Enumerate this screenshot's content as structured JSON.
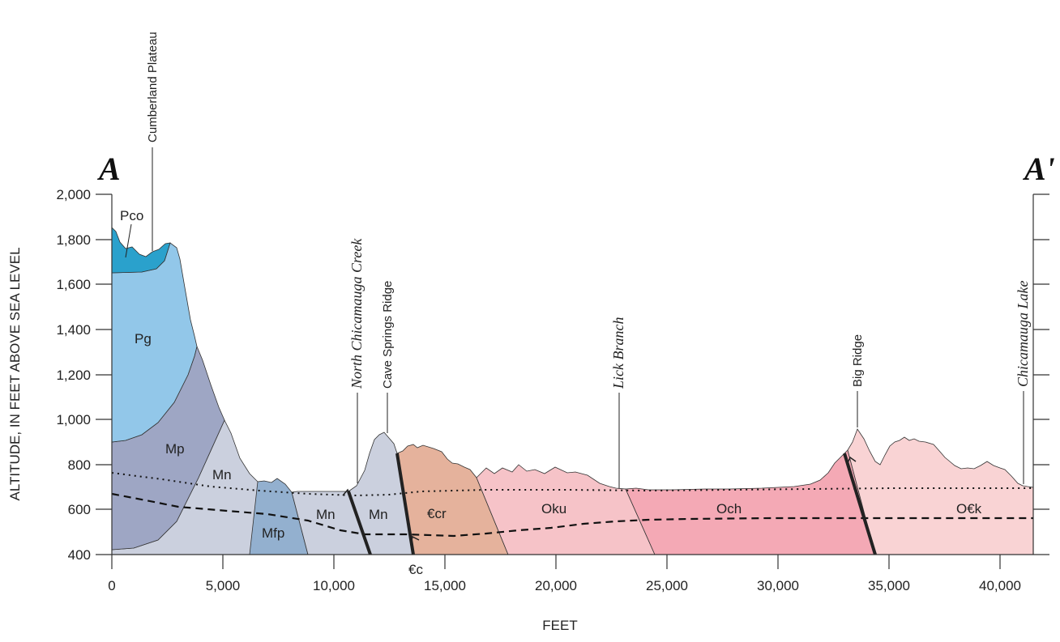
{
  "section": {
    "end_left": "A",
    "end_right": "A'",
    "x_axis_title": "FEET",
    "y_axis_title": "ALTITUDE, IN FEET ABOVE SEA LEVEL",
    "x_ticks": [
      "0",
      "5,000",
      "10,000",
      "15,000",
      "20,000",
      "25,000",
      "30,000",
      "35,000",
      "40,000"
    ],
    "y_ticks": [
      "400",
      "600",
      "800",
      "1,000",
      "1,200",
      "1,400",
      "1,600",
      "1,800",
      "2,000"
    ],
    "place_names": {
      "cumberland_plateau": "Cumberland Plateau",
      "north_chicamauga_creek": "North Chicamauga Creek",
      "cave_springs_ridge": "Cave Springs Ridge",
      "lick_branch": "Lick Branch",
      "big_ridge": "Big Ridge",
      "chicamauga_lake": "Chicamauga Lake"
    },
    "units": {
      "pco": "Pco",
      "pg": "Pg",
      "mp": "Mp",
      "mn_left": "Mn",
      "mfp": "Mfp",
      "mn_mid": "Mn",
      "mn_ridge": "Mn",
      "ecr": "€cr",
      "ec": "€c",
      "oku": "Oku",
      "och": "Och",
      "oek": "O€k"
    },
    "colors": {
      "pco": "#2aa1cc",
      "pg": "#92c7e9",
      "mp": "#9ea6c4",
      "mn": "#cbd0de",
      "mfp": "#93b0cf",
      "ecr": "#e5b29c",
      "oku": "#f6c3c8",
      "och": "#f4a9b5",
      "oek": "#f9d3d4"
    }
  }
}
